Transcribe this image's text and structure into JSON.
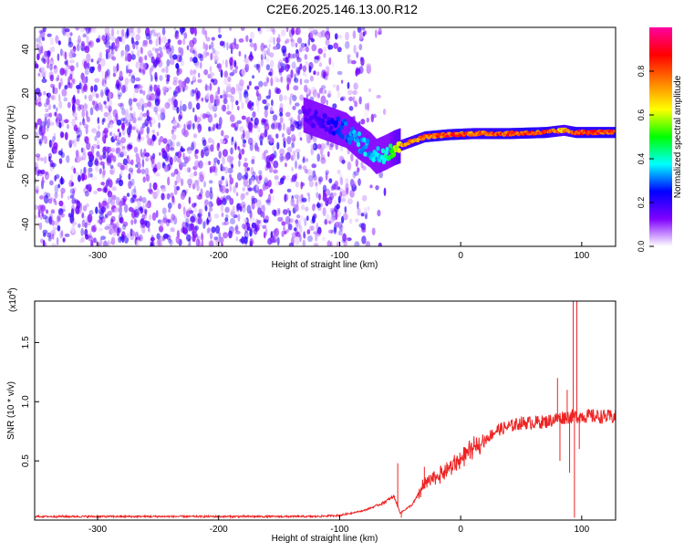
{
  "title": "C2E6.2025.146.13.00.R12",
  "chart_data": [
    {
      "type": "heatmap",
      "xlabel": "Height of straight line (km)",
      "ylabel": "Frequency (Hz)",
      "xlim": [
        -352,
        128
      ],
      "ylim": [
        -50,
        50
      ],
      "xticks": [
        -300,
        -200,
        -100,
        0,
        100
      ],
      "yticks": [
        -40,
        -20,
        0,
        20,
        40
      ],
      "colorbar": {
        "label": "Normalized spectral amplitude",
        "range": [
          0,
          1
        ],
        "ticks": [
          "0.0",
          "0.2",
          "0.4",
          "0.6",
          "0.8"
        ],
        "tick_values": [
          0.0,
          0.2,
          0.4,
          0.6,
          0.8
        ],
        "colormap": [
          "#ffffff",
          "#8000ff",
          "#0000ff",
          "#00ffff",
          "#00ff00",
          "#ffff00",
          "#ff8000",
          "#ff0000",
          "#ff00a0"
        ]
      },
      "noise_region": {
        "x_from": -352,
        "x_to": -60,
        "freq_from": -50,
        "freq_to": 50,
        "typical_amplitude": 0.15
      },
      "signal_trace": [
        {
          "x": -130,
          "freq": 10,
          "amplitude": 0.15
        },
        {
          "x": -110,
          "freq": 6,
          "amplitude": 0.2
        },
        {
          "x": -95,
          "freq": 3,
          "amplitude": 0.3
        },
        {
          "x": -85,
          "freq": -2,
          "amplitude": 0.35
        },
        {
          "x": -75,
          "freq": -6,
          "amplitude": 0.35
        },
        {
          "x": -70,
          "freq": -9,
          "amplitude": 0.35
        },
        {
          "x": -62,
          "freq": -7,
          "amplitude": 0.4
        },
        {
          "x": -55,
          "freq": -5,
          "amplitude": 0.6
        },
        {
          "x": -45,
          "freq": -3,
          "amplitude": 0.75
        },
        {
          "x": -30,
          "freq": 0,
          "amplitude": 0.8
        },
        {
          "x": -10,
          "freq": 1,
          "amplitude": 0.85
        },
        {
          "x": 10,
          "freq": 1.5,
          "amplitude": 0.8
        },
        {
          "x": 40,
          "freq": 1.5,
          "amplitude": 0.85
        },
        {
          "x": 70,
          "freq": 2,
          "amplitude": 0.85
        },
        {
          "x": 85,
          "freq": 3,
          "amplitude": 0.7
        },
        {
          "x": 95,
          "freq": 2,
          "amplitude": 0.85
        },
        {
          "x": 128,
          "freq": 2,
          "amplitude": 0.85
        }
      ]
    },
    {
      "type": "line",
      "xlabel": "Height of straight line (km)",
      "ylabel": "SNR (10 * v/v)",
      "y_multiplier_label": "(x10",
      "y_multiplier_exp": "4",
      "y_multiplier_close": ")",
      "xlim": [
        -352,
        128
      ],
      "ylim": [
        0,
        1.85
      ],
      "xticks": [
        -300,
        -200,
        -100,
        0,
        100
      ],
      "yticks": [
        "0.5",
        "1.0",
        "1.5"
      ],
      "ytick_values": [
        0.5,
        1.0,
        1.5
      ],
      "series_color": "#ee2222",
      "envelope": [
        {
          "x": -352,
          "y": 0.03
        },
        {
          "x": -120,
          "y": 0.03
        },
        {
          "x": -100,
          "y": 0.04
        },
        {
          "x": -80,
          "y": 0.08
        },
        {
          "x": -65,
          "y": 0.14
        },
        {
          "x": -55,
          "y": 0.2
        },
        {
          "x": -50,
          "y": 0.06
        },
        {
          "x": -40,
          "y": 0.13
        },
        {
          "x": -30,
          "y": 0.3
        },
        {
          "x": -10,
          "y": 0.43
        },
        {
          "x": 10,
          "y": 0.6
        },
        {
          "x": 30,
          "y": 0.76
        },
        {
          "x": 50,
          "y": 0.82
        },
        {
          "x": 70,
          "y": 0.83
        },
        {
          "x": 85,
          "y": 0.87
        },
        {
          "x": 100,
          "y": 0.88
        },
        {
          "x": 128,
          "y": 0.87
        }
      ],
      "spikes": [
        {
          "x": -52,
          "y": 0.48
        },
        {
          "x": -49,
          "y": 0.02
        },
        {
          "x": -30,
          "y": 0.45
        },
        {
          "x": 80,
          "y": 1.2
        },
        {
          "x": 82,
          "y": 0.5
        },
        {
          "x": 88,
          "y": 1.1
        },
        {
          "x": 90,
          "y": 0.4
        },
        {
          "x": 93,
          "y": 1.85
        },
        {
          "x": 94,
          "y": 0.02
        },
        {
          "x": 96,
          "y": 1.85
        },
        {
          "x": 98,
          "y": 0.6
        }
      ]
    }
  ]
}
